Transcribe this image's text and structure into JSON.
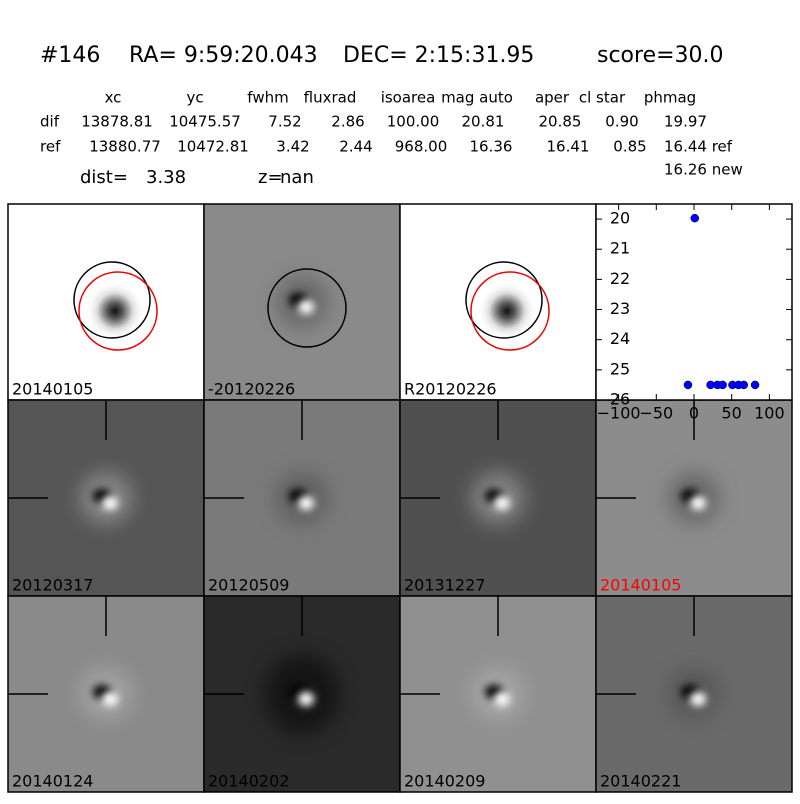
{
  "header": {
    "id": "#146",
    "ra": "RA= 9:59:20.043",
    "dec": "DEC= 2:15:31.95",
    "score": "score=30.0"
  },
  "table": {
    "columns": [
      "xc",
      "yc",
      "fwhm",
      "fluxrad",
      "isoarea",
      "mag auto",
      "aper",
      "cl star",
      "phmag"
    ],
    "rows": [
      [
        "dif",
        "13878.81",
        "10475.57",
        "7.52",
        "2.86",
        "100.00",
        "20.81",
        "20.85",
        "0.90",
        "19.97"
      ],
      [
        "ref",
        "13880.77",
        "10472.81",
        "3.42",
        "2.44",
        "968.00",
        "16.36",
        "16.41",
        "0.85",
        "16.44 ref"
      ]
    ],
    "extra": "16.26 new"
  },
  "stats": {
    "dist_label": "dist=",
    "dist": "3.38",
    "z_label": "z=",
    "z": "nan"
  },
  "panels": [
    {
      "label": "20140105"
    },
    {
      "label": "-20120226"
    },
    {
      "label": "R20120226"
    },
    {
      "label": "20120317"
    },
    {
      "label": "20120509"
    },
    {
      "label": "20131227"
    },
    {
      "label": "20140105",
      "label_color": "#ff0000"
    },
    {
      "label": "20140124"
    },
    {
      "label": "20140202"
    },
    {
      "label": "20140209"
    },
    {
      "label": "20140221"
    }
  ],
  "chart_data": {
    "type": "scatter",
    "x": [
      -8,
      1,
      22,
      31,
      38,
      51,
      59,
      66,
      81
    ],
    "values": [
      25.5,
      19.97,
      25.5,
      25.5,
      25.5,
      25.5,
      25.5,
      25.5,
      25.5
    ],
    "color": "#0000ff",
    "xlim": [
      -130,
      130
    ],
    "ylim": [
      26,
      19.5
    ],
    "xticks": [
      {
        "value": -100,
        "label": "−100"
      },
      {
        "value": -50,
        "label": "−50"
      },
      0,
      50,
      100
    ],
    "yticks": [
      20,
      21,
      22,
      23,
      24,
      25,
      26
    ]
  }
}
